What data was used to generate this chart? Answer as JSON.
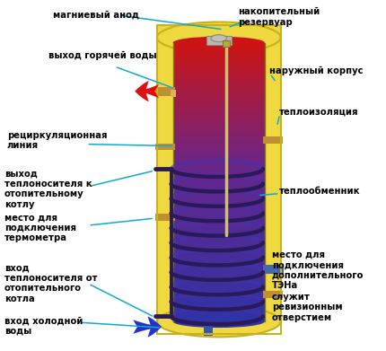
{
  "bg_color": "#ffffff",
  "tank_yellow": "#f0d840",
  "tank_yellow_edge": "#c8b020",
  "tank_red": "#cc1111",
  "tank_purple": "#5533aa",
  "tank_blue_bottom": "#3344bb",
  "coil_dark": "#2a1a5a",
  "coil_mid": "#4433aa",
  "arrow_red": "#dd1111",
  "arrow_blue": "#2233cc",
  "line_color": "#11aacc",
  "label_color": "#000000",
  "font_size": 7.2,
  "labels": {
    "magn_anode": "магниевый анод",
    "nakopit": "накопительный\nрезервуар",
    "vyhod_goryach": "выход горячей воды",
    "naruzhn_korpus": "наружный корпус",
    "teploizol": "теплоизоляция",
    "recirk": "рециркуляционная\nлиния",
    "vyhod_tepl": "выход\nтеплоносителя к\nотопительному\nкотлу",
    "mesto_term": "место для\nподключения\nтермометра",
    "vhod_tepl": "вход\nтеплоносителя от\nотопительного\nкотла",
    "vhod_holod": "вход холодной\nводы",
    "teploobmen": "теплообменник",
    "mesto_dop": "место для\nподключения\nдополнительного\nТЭНа",
    "sluzhit": "служит\nревизионным\nотверстием"
  }
}
